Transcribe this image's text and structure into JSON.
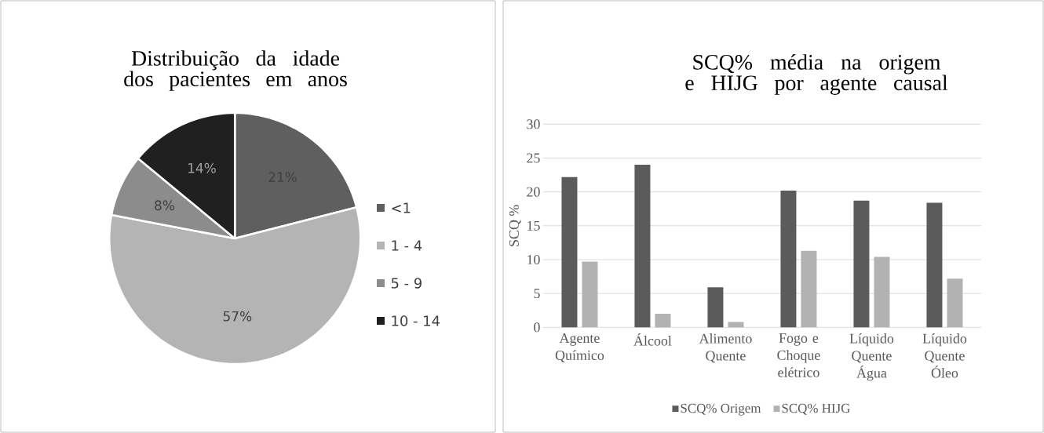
{
  "chart_data": [
    {
      "type": "pie",
      "title": "Distribuição da idade dos pacientes em anos",
      "categories": [
        "<1",
        "1 - 4",
        "5 - 9",
        "10 - 14"
      ],
      "values": [
        21,
        57,
        8,
        14
      ],
      "colors": [
        "#5f5f5f",
        "#b4b4b4",
        "#8c8c8c",
        "#202020"
      ],
      "value_labels": [
        "21%",
        "57%",
        "8%",
        "14%"
      ],
      "legend": "right"
    },
    {
      "type": "bar",
      "title": "SCQ% média na origem e HIJG por agente causal",
      "ylabel": "SCQ %",
      "categories": [
        "Agente Químico",
        "Álcool",
        "Alimento Quente",
        "Fogo e Choque elétrico",
        "Líquido Quente Água",
        "Líquido Quente Óleo"
      ],
      "series": [
        {
          "name": "SCQ% Origem",
          "color": "#5b5b5b",
          "values": [
            22.2,
            24.0,
            5.9,
            20.2,
            18.7,
            18.4
          ]
        },
        {
          "name": "SCQ% HIJG",
          "color": "#b2b2b2",
          "values": [
            9.7,
            2.0,
            0.8,
            11.3,
            10.4,
            7.2
          ]
        }
      ],
      "ylim": [
        0,
        30
      ],
      "yticks": [
        0,
        5,
        10,
        15,
        20,
        25,
        30
      ],
      "grid": "y",
      "legend": "bottom"
    }
  ]
}
